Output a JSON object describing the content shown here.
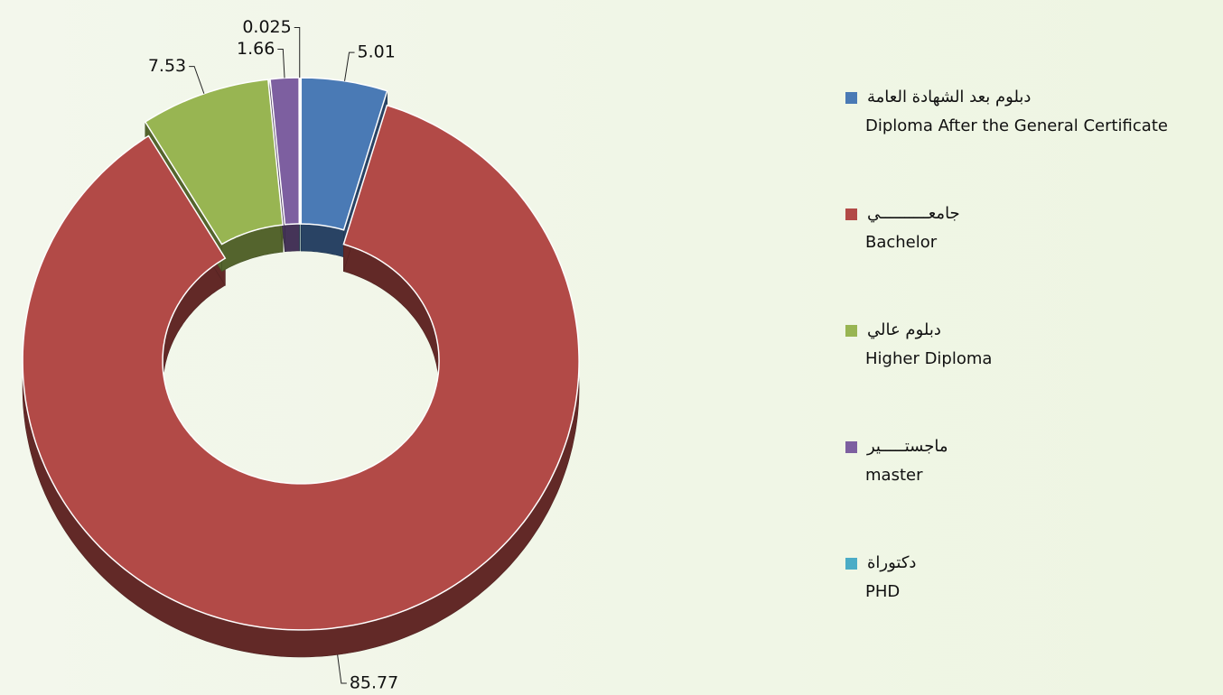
{
  "chart_data": {
    "type": "pie",
    "categories": [
      "Diploma After the General Certificate",
      "Bachelor",
      "Higher Diploma",
      "master",
      "PHD"
    ],
    "categories_ar": [
      "دبلوم بعد الشهادة العامة",
      "جامعــــــــــي",
      "دبلوم عالي",
      "ماجستـــــير",
      "دكتوراة"
    ],
    "values": [
      5.01,
      85.77,
      7.53,
      1.66,
      0.025
    ],
    "colors": [
      "#4a7ab5",
      "#b24a47",
      "#98b552",
      "#7d5fa0",
      "#4bacc6"
    ],
    "donut": true,
    "three_d": true,
    "legend": "right"
  }
}
